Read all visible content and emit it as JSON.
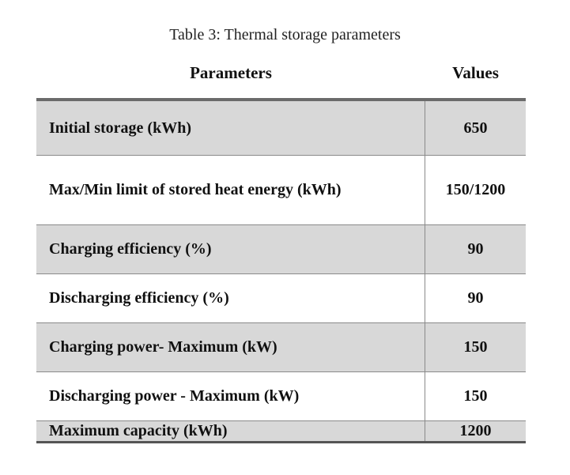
{
  "caption": "Table 3: Thermal storage parameters",
  "headers": {
    "parameters": "Parameters",
    "values": "Values"
  },
  "rows": [
    {
      "param": "Initial storage (kWh)",
      "value": "650"
    },
    {
      "param": "Max/Min limit of stored heat energy (kWh)",
      "value": "150/1200"
    },
    {
      "param": "Charging efficiency (%)",
      "value": "90"
    },
    {
      "param": "Discharging efficiency (%)",
      "value": "90"
    },
    {
      "param": "Charging power- Maximum (kW)",
      "value": "150"
    },
    {
      "param": "Discharging  power - Maximum (kW)",
      "value": "150"
    },
    {
      "param": "Maximum capacity (kWh)",
      "value": "1200"
    }
  ]
}
